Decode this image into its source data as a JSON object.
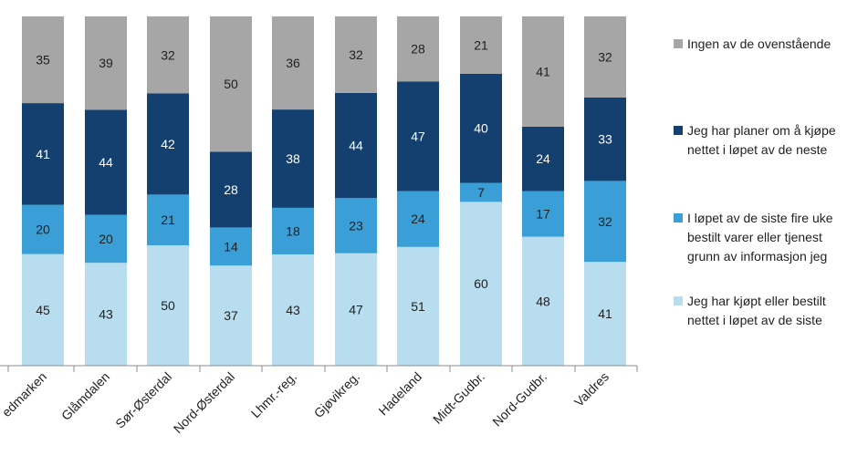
{
  "chart_data": {
    "type": "stacked-bar",
    "categories": [
      "Hedmarken",
      "Glåmdalen",
      "Sør-Østerdal",
      "Nord-Østerdal",
      "Lhmr.-reg.",
      "Gjøvikreg.",
      "Hadeland",
      "Midt-Gudbr.",
      "Nord-Gudbr.",
      "Valdres"
    ],
    "series": [
      {
        "name": "Jeg har kjøpt eller bestilt ... nettet i løpet av de siste ...",
        "color": "#b8ddef",
        "values": [
          45,
          43,
          50,
          37,
          43,
          47,
          51,
          60,
          48,
          41
        ]
      },
      {
        "name": "I løpet av de siste fire uker ... bestilt varer eller tjenester ... grunn av informasjon jeg ...",
        "color": "#3a9fd6",
        "values": [
          20,
          20,
          21,
          14,
          18,
          23,
          24,
          7,
          17,
          32
        ]
      },
      {
        "name": "Jeg har planer om å kjøpe ... nettet i løpet av de neste ...",
        "color": "#14406f",
        "values": [
          41,
          44,
          42,
          28,
          38,
          44,
          47,
          40,
          24,
          33
        ]
      },
      {
        "name": "Ingen av de ovenstående",
        "color": "#a6a6a6",
        "values": [
          35,
          39,
          32,
          50,
          36,
          32,
          28,
          21,
          41,
          32
        ]
      }
    ],
    "axis_labels": [
      "edmarken",
      "Glåmdalen",
      "Sør-Østerdal",
      "Nord-Østerdal",
      "Lhmr.-reg.",
      "Gjøvikreg.",
      "Hadeland",
      "Midt-Gudbr.",
      "Nord-Gudbr.",
      "Valdres"
    ],
    "stacking": "percent",
    "legend": [
      {
        "color": "#a6a6a6",
        "lines": [
          "Ingen av de ovenstående"
        ]
      },
      {
        "color": "#14406f",
        "lines": [
          "Jeg har planer om å kjøpe",
          "nettet i løpet av de neste"
        ]
      },
      {
        "color": "#3a9fd6",
        "lines": [
          "I løpet av de siste fire uke",
          "bestilt varer eller tjenest",
          "grunn av informasjon jeg"
        ]
      },
      {
        "color": "#b8ddef",
        "lines": [
          "Jeg har kjøpt eller bestilt",
          "nettet i løpet av de siste"
        ]
      }
    ],
    "legend_position": "right"
  }
}
